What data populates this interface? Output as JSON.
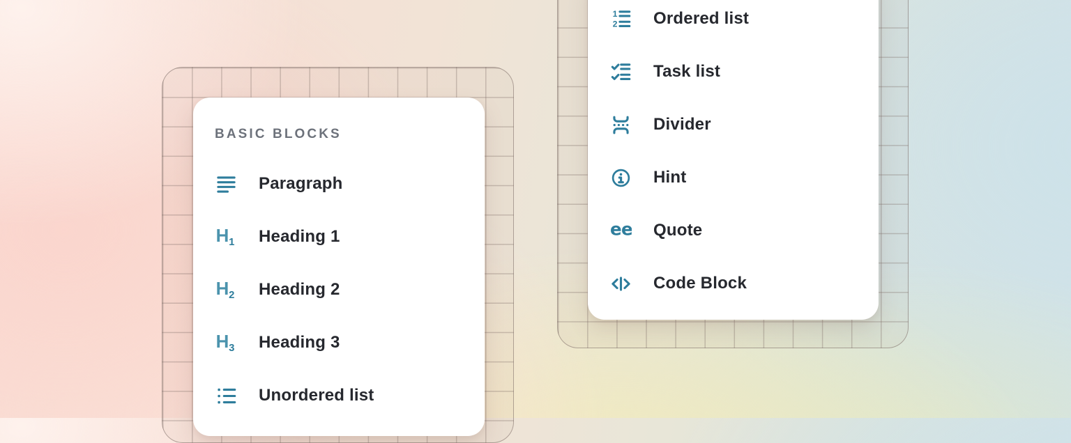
{
  "colors": {
    "icon_accent": "#2e7d9c",
    "icon_accent_light": "#4b93ad",
    "label_text": "#26282e",
    "section_header_text": "#6d727b",
    "card_background": "#ffffff"
  },
  "left_menu": {
    "section_label": "BASIC BLOCKS",
    "items": [
      {
        "icon": "paragraph-icon",
        "label": "Paragraph"
      },
      {
        "icon": "heading-1-icon",
        "label": "Heading 1"
      },
      {
        "icon": "heading-2-icon",
        "label": "Heading 2"
      },
      {
        "icon": "heading-3-icon",
        "label": "Heading 3"
      },
      {
        "icon": "unordered-list-icon",
        "label": "Unordered list"
      }
    ]
  },
  "right_menu": {
    "items": [
      {
        "icon": "ordered-list-icon",
        "label": "Ordered list"
      },
      {
        "icon": "task-list-icon",
        "label": "Task list"
      },
      {
        "icon": "divider-icon",
        "label": "Divider"
      },
      {
        "icon": "hint-icon",
        "label": "Hint"
      },
      {
        "icon": "quote-icon",
        "label": "Quote"
      },
      {
        "icon": "code-block-icon",
        "label": "Code Block"
      }
    ]
  }
}
